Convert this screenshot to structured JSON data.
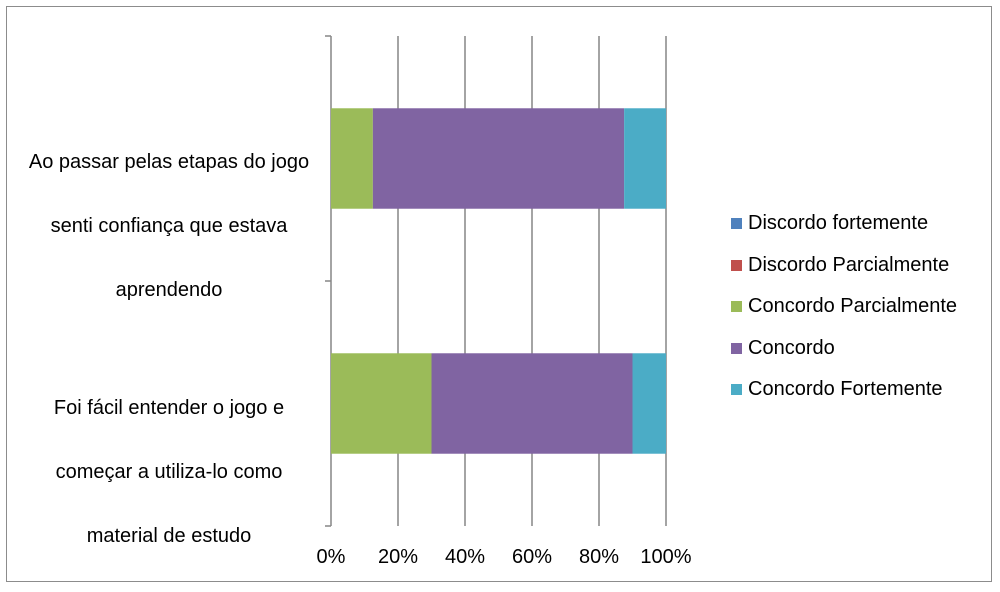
{
  "chart_data": {
    "type": "bar",
    "orientation": "horizontal",
    "stacked": "percent",
    "categories": [
      "Ao passar pelas etapas do jogo senti confiança que estava aprendendo",
      "Foi fácil entender o jogo e começar a utiliza-lo como material de estudo"
    ],
    "category_lines": [
      [
        "Ao passar pelas etapas do jogo",
        "senti confiança que estava",
        "aprendendo"
      ],
      [
        "Foi fácil entender o jogo e",
        "começar a utiliza-lo como",
        "material de estudo"
      ]
    ],
    "series": [
      {
        "name": "Discordo fortemente",
        "color": "#4f81bd",
        "values": [
          0,
          0
        ]
      },
      {
        "name": "Discordo Parcialmente",
        "color": "#c0504d",
        "values": [
          0,
          0
        ]
      },
      {
        "name": "Concordo Parcialmente",
        "color": "#9bbb59",
        "values": [
          12.5,
          30
        ]
      },
      {
        "name": "Concordo",
        "color": "#8064a2",
        "values": [
          75,
          60
        ]
      },
      {
        "name": "Concordo Fortemente",
        "color": "#4bacc6",
        "values": [
          12.5,
          10
        ]
      }
    ],
    "x_ticks": [
      "0%",
      "20%",
      "40%",
      "60%",
      "80%",
      "100%"
    ],
    "xlim": [
      0,
      100
    ],
    "grid": true,
    "legend_position": "right",
    "title": "",
    "xlabel": "",
    "ylabel": ""
  }
}
